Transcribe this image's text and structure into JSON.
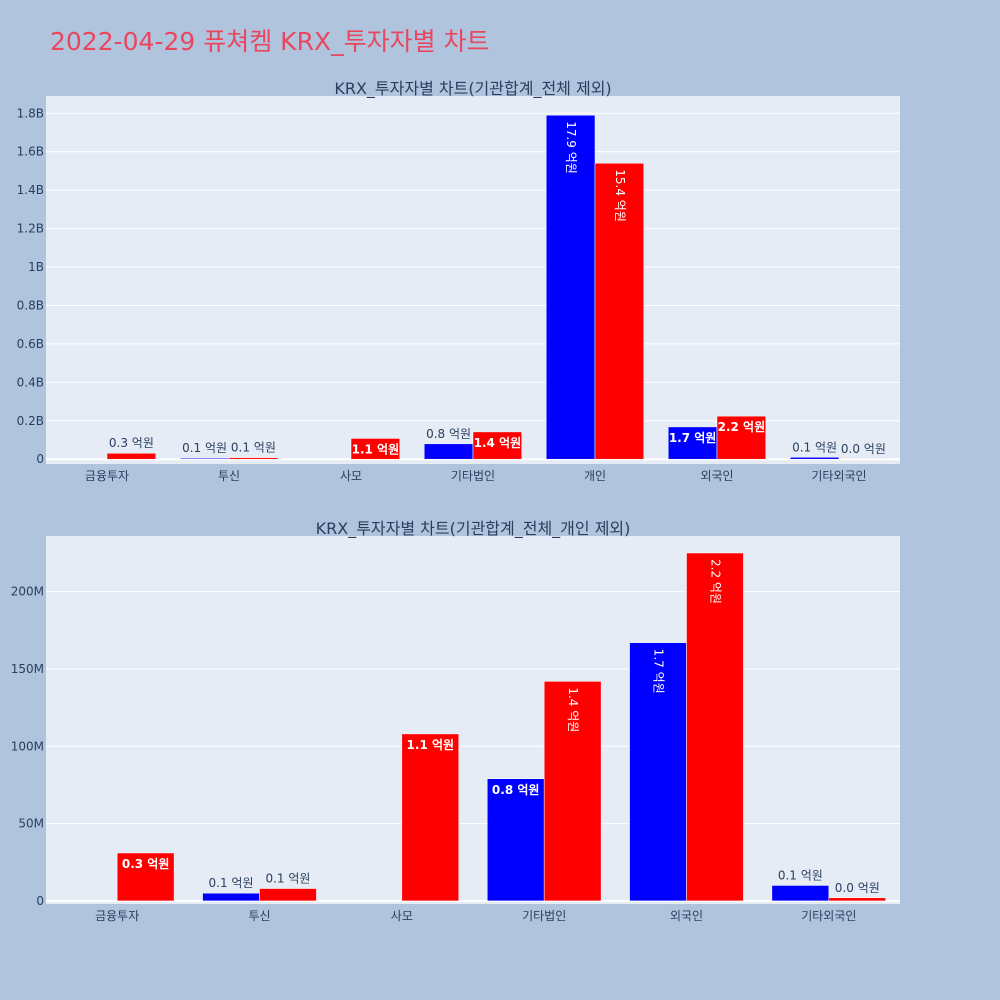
{
  "page": {
    "title": "2022-04-29 퓨쳐켐 KRX_투자자별 차트"
  },
  "colors": {
    "background": "#b0c4de",
    "plot_bg": "#e5ecf6",
    "series_a": "#0000ff",
    "series_b": "#ff0000",
    "title": "#e8475f",
    "text": "#2a3f5f"
  },
  "chart_data": [
    {
      "type": "bar",
      "title": "KRX_투자자별 차트(기관합계_전체 제외)",
      "categories": [
        "금융투자",
        "투신",
        "사모",
        "기타법인",
        "개인",
        "외국인",
        "기타외국인"
      ],
      "series": [
        {
          "values": [
            0,
            5000000,
            0,
            80000000,
            1790000000,
            168000000,
            10000000
          ],
          "labels": [
            "",
            "0.1 억원",
            "",
            "0.8 억원",
            "17.9 억원",
            "1.7 억원",
            "0.1 억원"
          ]
        },
        {
          "values": [
            31000000,
            8000000,
            108000000,
            142000000,
            1540000000,
            224000000,
            2000000
          ],
          "labels": [
            "0.3 억원",
            "0.1 억원",
            "1.1 억원",
            "1.4 억원",
            "15.4 억원",
            "2.2 억원",
            "0.0 억원"
          ]
        }
      ],
      "yticks": [
        {
          "value": 0,
          "label": "0"
        },
        {
          "value": 200000000,
          "label": "0.2B"
        },
        {
          "value": 400000000,
          "label": "0.4B"
        },
        {
          "value": 600000000,
          "label": "0.6B"
        },
        {
          "value": 800000000,
          "label": "0.8B"
        },
        {
          "value": 1000000000,
          "label": "1B"
        },
        {
          "value": 1200000000,
          "label": "1.2B"
        },
        {
          "value": 1400000000,
          "label": "1.4B"
        },
        {
          "value": 1600000000,
          "label": "1.6B"
        },
        {
          "value": 1800000000,
          "label": "1.8B"
        }
      ],
      "ylim": [
        -25000000,
        1890000000
      ],
      "grid": true
    },
    {
      "type": "bar",
      "title": "KRX_투자자별 차트(기관합계_전체_개인 제외)",
      "categories": [
        "금융투자",
        "투신",
        "사모",
        "기타법인",
        "외국인",
        "기타외국인"
      ],
      "series": [
        {
          "values": [
            0,
            5000000,
            0,
            79000000,
            167000000,
            10000000
          ],
          "labels": [
            "",
            "0.1 억원",
            "",
            "0.8 억원",
            "1.7 억원",
            "0.1 억원"
          ]
        },
        {
          "values": [
            31000000,
            8000000,
            108000000,
            142000000,
            225000000,
            2000000
          ],
          "labels": [
            "0.3 억원",
            "0.1 억원",
            "1.1 억원",
            "1.4 억원",
            "2.2 억원",
            "0.0 억원"
          ]
        }
      ],
      "yticks": [
        {
          "value": 0,
          "label": "0"
        },
        {
          "value": 50000000,
          "label": "50M"
        },
        {
          "value": 100000000,
          "label": "100M"
        },
        {
          "value": 150000000,
          "label": "150M"
        },
        {
          "value": 200000000,
          "label": "200M"
        }
      ],
      "ylim": [
        -2000000,
        236000000
      ],
      "grid": true
    }
  ]
}
